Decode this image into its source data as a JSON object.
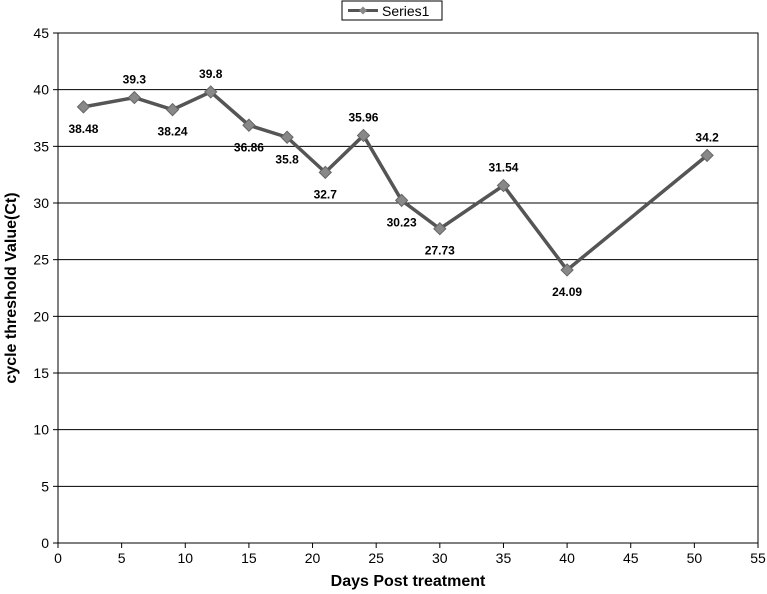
{
  "chart_data": {
    "type": "line",
    "xlabel": "Days Post treatment",
    "ylabel": "cycle threshold Value(Ct)",
    "xlim": [
      0,
      55
    ],
    "ylim": [
      0,
      45
    ],
    "x_ticks": [
      "0",
      "5",
      "10",
      "15",
      "20",
      "25",
      "30",
      "35",
      "40",
      "45",
      "50",
      "55"
    ],
    "y_ticks": [
      "0",
      "5",
      "10",
      "15",
      "20",
      "25",
      "30",
      "35",
      "40",
      "45"
    ],
    "grid": "horizontal",
    "legend_position": "top-center",
    "series": [
      {
        "name": "Series1",
        "color": "#555555",
        "marker": "diamond",
        "marker_color": "#888888",
        "x": [
          2,
          6,
          9,
          12,
          15,
          18,
          21,
          24,
          27,
          30,
          35,
          40,
          51
        ],
        "y": [
          38.48,
          39.3,
          38.24,
          39.8,
          36.86,
          35.8,
          32.7,
          35.96,
          30.23,
          27.73,
          31.54,
          24.09,
          34.2
        ],
        "labels": [
          "38.48",
          "39.3",
          "38.24",
          "39.8",
          "36.86",
          "35.8",
          "32.7",
          "35.96",
          "30.23",
          "27.73",
          "31.54",
          "24.09",
          "34.2"
        ]
      }
    ]
  }
}
